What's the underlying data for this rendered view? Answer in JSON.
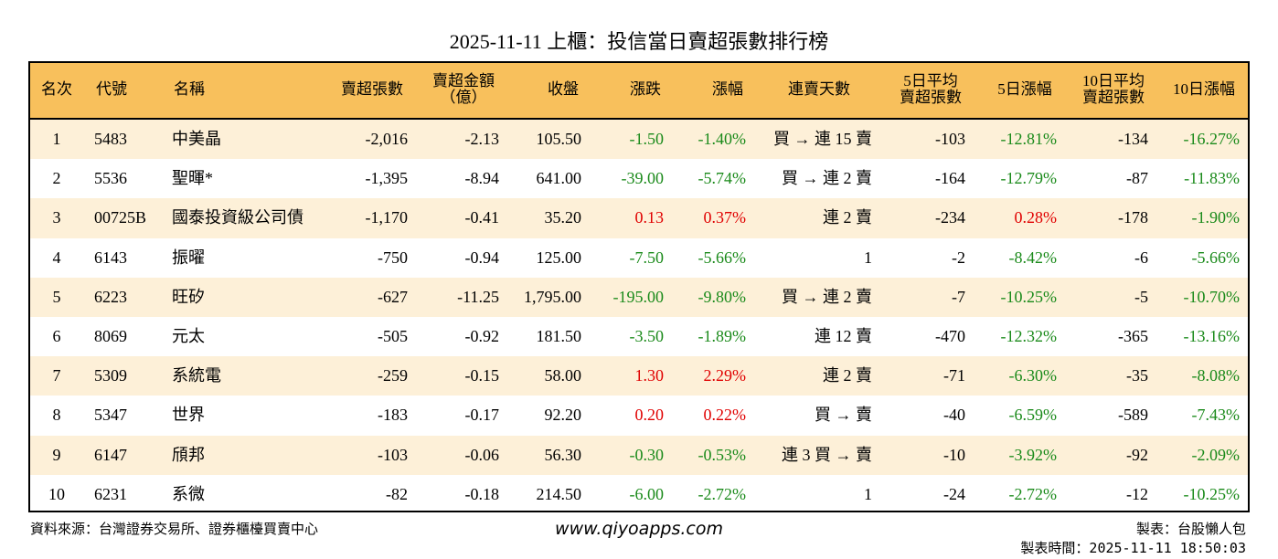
{
  "title": "2025-11-11 上櫃：投信當日賣超張數排行榜",
  "table": {
    "colors": {
      "up": "#e00000",
      "down": "#1a8a1a"
    },
    "header": [
      "名次",
      "代號",
      "名稱",
      "賣超張數",
      "賣超金額\n（億）",
      "收盤",
      "漲跌",
      "漲幅",
      "連賣天數",
      "5日平均\n賣超張數",
      "5日漲幅",
      "10日平均\n賣超張數",
      "10日漲幅"
    ],
    "rows": [
      [
        "1",
        "5483",
        "中美晶",
        "-2,016",
        "-2.13",
        "105.50",
        "-1.50",
        "-1.40%",
        "買 → 連 15 賣",
        "-103",
        "-12.81%",
        "-134",
        "-16.27%"
      ],
      [
        "2",
        "5536",
        "聖暉*",
        "-1,395",
        "-8.94",
        "641.00",
        "-39.00",
        "-5.74%",
        "買 → 連 2 賣",
        "-164",
        "-12.79%",
        "-87",
        "-11.83%"
      ],
      [
        "3",
        "00725B",
        "國泰投資級公司債",
        "-1,170",
        "-0.41",
        "35.20",
        "0.13",
        "0.37%",
        "連 2 賣",
        "-234",
        "0.28%",
        "-178",
        "-1.90%"
      ],
      [
        "4",
        "6143",
        "振曜",
        "-750",
        "-0.94",
        "125.00",
        "-7.50",
        "-5.66%",
        "1",
        "-2",
        "-8.42%",
        "-6",
        "-5.66%"
      ],
      [
        "5",
        "6223",
        "旺矽",
        "-627",
        "-11.25",
        "1,795.00",
        "-195.00",
        "-9.80%",
        "買 → 連 2 賣",
        "-7",
        "-10.25%",
        "-5",
        "-10.70%"
      ],
      [
        "6",
        "8069",
        "元太",
        "-505",
        "-0.92",
        "181.50",
        "-3.50",
        "-1.89%",
        "連 12 賣",
        "-470",
        "-12.32%",
        "-365",
        "-13.16%"
      ],
      [
        "7",
        "5309",
        "系統電",
        "-259",
        "-0.15",
        "58.00",
        "1.30",
        "2.29%",
        "連 2 賣",
        "-71",
        "-6.30%",
        "-35",
        "-8.08%"
      ],
      [
        "8",
        "5347",
        "世界",
        "-183",
        "-0.17",
        "92.20",
        "0.20",
        "0.22%",
        "買 → 賣",
        "-40",
        "-6.59%",
        "-589",
        "-7.43%"
      ],
      [
        "9",
        "6147",
        "頎邦",
        "-103",
        "-0.06",
        "56.30",
        "-0.30",
        "-0.53%",
        "連 3 買 → 賣",
        "-10",
        "-3.92%",
        "-92",
        "-2.09%"
      ],
      [
        "10",
        "6231",
        "系微",
        "-82",
        "-0.18",
        "214.50",
        "-6.00",
        "-2.72%",
        "1",
        "-24",
        "-2.72%",
        "-12",
        "-10.25%"
      ]
    ]
  },
  "footer": {
    "source": "資料來源：台灣證券交易所、證券櫃檯買賣中心",
    "website": "www.qiyoapps.com",
    "maker": "製表：台股懶人包",
    "time": "製表時間：2025-11-11 18:50:03"
  }
}
